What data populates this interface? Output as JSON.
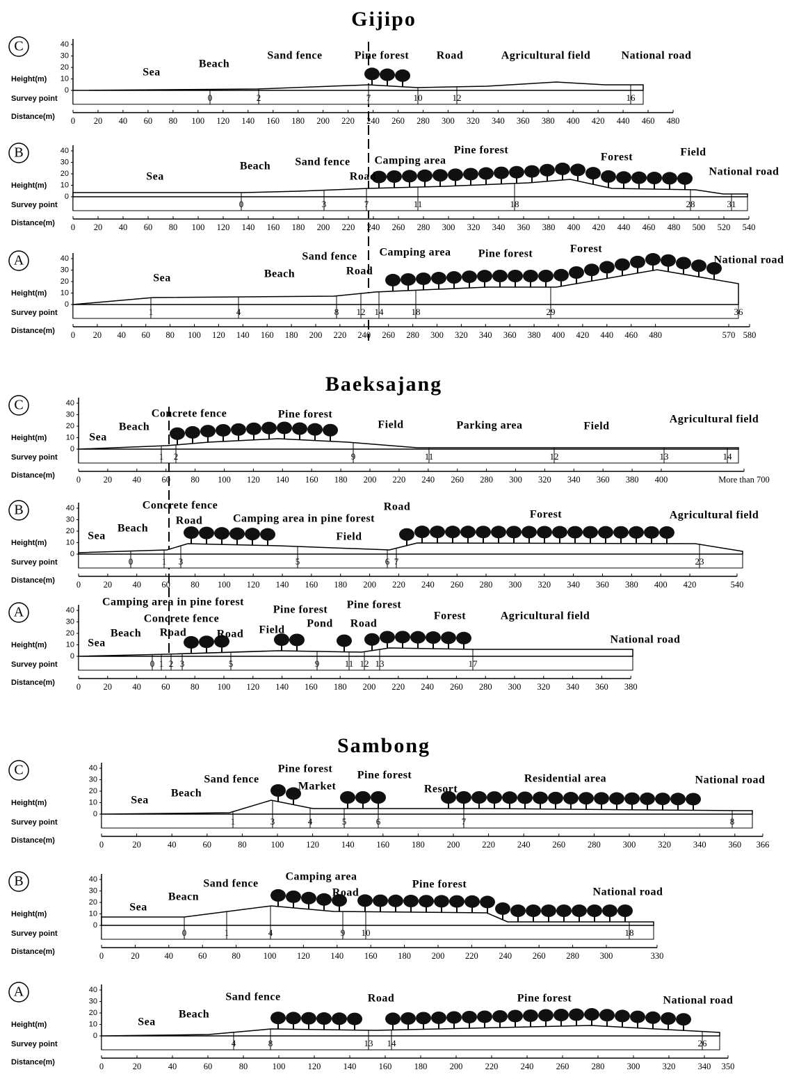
{
  "labels": {
    "height": "Height(m)",
    "survey": "Survey point",
    "distance": "Distance(m)"
  },
  "height_ticks": [
    40,
    30,
    20,
    10,
    0
  ],
  "sites": [
    {
      "title": "Gijipo",
      "transects": [
        {
          "label": "C",
          "landmarks": [
            "Sea",
            "Beach",
            "Sand fence",
            "Pine forest",
            "Road",
            "Agricultural field",
            "National road"
          ],
          "survey_points": [
            0,
            2,
            7,
            10,
            12,
            16
          ],
          "distance_ticks": [
            0,
            20,
            40,
            60,
            80,
            100,
            120,
            140,
            160,
            180,
            200,
            220,
            240,
            260,
            280,
            300,
            320,
            340,
            360,
            380,
            400,
            420,
            440,
            460,
            480
          ]
        },
        {
          "label": "B",
          "landmarks": [
            "Sea",
            "Beach",
            "Sand fence",
            "Road",
            "Camping area",
            "Pine forest",
            "Forest",
            "Field",
            "National road"
          ],
          "survey_points": [
            0,
            3,
            7,
            11,
            18,
            28,
            31
          ],
          "distance_ticks": [
            0,
            20,
            40,
            60,
            80,
            100,
            120,
            140,
            160,
            180,
            200,
            220,
            240,
            260,
            280,
            300,
            320,
            340,
            360,
            380,
            400,
            420,
            440,
            460,
            480,
            500,
            520,
            540
          ]
        },
        {
          "label": "A",
          "landmarks": [
            "Sea",
            "Beach",
            "Sand fence",
            "Road",
            "Camping area",
            "Pine forest",
            "Forest",
            "National road"
          ],
          "survey_points": [
            1,
            4,
            8,
            12,
            14,
            18,
            29,
            36
          ],
          "distance_ticks": [
            0,
            20,
            40,
            60,
            80,
            100,
            120,
            140,
            160,
            180,
            200,
            220,
            240,
            260,
            280,
            300,
            320,
            340,
            360,
            380,
            400,
            420,
            440,
            460,
            480,
            570,
            580
          ]
        }
      ]
    },
    {
      "title": "Baeksajang",
      "transects": [
        {
          "label": "C",
          "landmarks": [
            "Sea",
            "Beach",
            "Concrete fence",
            "Pine forest",
            "Field",
            "Parking area",
            "Field",
            "Agricultural field"
          ],
          "survey_points": [
            1,
            2,
            9,
            11,
            12,
            13,
            14
          ],
          "distance_ticks": [
            0,
            20,
            40,
            60,
            80,
            100,
            120,
            140,
            160,
            180,
            200,
            220,
            240,
            260,
            280,
            300,
            320,
            340,
            360,
            380,
            400,
            {
              "value": 700,
              "label": "More than 700"
            }
          ]
        },
        {
          "label": "B",
          "landmarks": [
            "Sea",
            "Beach",
            "Concrete fence",
            "Road",
            "Camping area in pine forest",
            "Field",
            "Road",
            "Forest",
            "Agricultural field"
          ],
          "survey_points": [
            0,
            1,
            3,
            5,
            6,
            7,
            23
          ],
          "distance_ticks": [
            0,
            20,
            40,
            60,
            80,
            100,
            120,
            140,
            160,
            180,
            200,
            220,
            240,
            260,
            280,
            300,
            320,
            340,
            360,
            380,
            400,
            420,
            540
          ]
        },
        {
          "label": "A",
          "landmarks": [
            "Camping area in pine forest",
            "Concrete fence",
            "Sea",
            "Beach",
            "Road",
            "Road",
            "Field",
            "Pine forest",
            "Pond",
            "Road",
            "Pine forest",
            "Forest",
            "Agricultural field",
            "National road"
          ],
          "survey_points": [
            0,
            1,
            2,
            3,
            5,
            9,
            11,
            12,
            13,
            17
          ],
          "distance_ticks": [
            0,
            20,
            40,
            60,
            80,
            100,
            120,
            140,
            160,
            180,
            200,
            220,
            240,
            260,
            280,
            300,
            320,
            340,
            360,
            380
          ]
        }
      ]
    },
    {
      "title": "Sambong",
      "transects": [
        {
          "label": "C",
          "landmarks": [
            "Sea",
            "Beach",
            "Sand fence",
            "Pine forest",
            "Market",
            "Pine forest",
            "Resort",
            "Residential area",
            "National road"
          ],
          "survey_points": [
            1,
            3,
            4,
            5,
            6,
            7,
            8
          ],
          "distance_ticks": [
            0,
            20,
            40,
            60,
            80,
            100,
            120,
            140,
            160,
            180,
            200,
            220,
            240,
            260,
            280,
            300,
            320,
            340,
            360,
            366
          ]
        },
        {
          "label": "B",
          "landmarks": [
            "Sea",
            "Beacn",
            "Sand fence",
            "Camping area",
            "Road",
            "Pine forest",
            "National road"
          ],
          "survey_points": [
            0,
            1,
            4,
            9,
            10,
            18
          ],
          "distance_ticks": [
            0,
            20,
            40,
            60,
            80,
            100,
            120,
            140,
            160,
            180,
            200,
            220,
            240,
            260,
            280,
            300,
            330
          ]
        },
        {
          "label": "A",
          "landmarks": [
            "Sea",
            "Beach",
            "Sand fence",
            "Road",
            "Pine forest",
            "National road"
          ],
          "survey_points": [
            4,
            8,
            13,
            14,
            26
          ],
          "distance_ticks": [
            0,
            20,
            40,
            60,
            80,
            100,
            120,
            140,
            160,
            180,
            200,
            220,
            240,
            260,
            280,
            300,
            320,
            340,
            350
          ]
        }
      ]
    }
  ]
}
